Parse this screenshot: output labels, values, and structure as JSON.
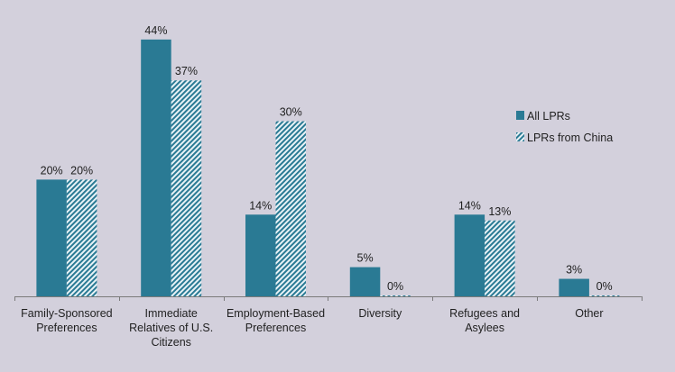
{
  "chart_data": {
    "type": "bar",
    "title": "",
    "xlabel": "",
    "ylabel": "",
    "ylim": [
      0,
      45
    ],
    "grid": false,
    "legend_position": "right",
    "categories": [
      [
        "Family-Sponsored",
        "Preferences"
      ],
      [
        "Immediate",
        "Relatives of U.S.",
        "Citizens"
      ],
      [
        "Employment-Based",
        "Preferences"
      ],
      [
        "Diversity"
      ],
      [
        "Refugees and",
        "Asylees"
      ],
      [
        "Other"
      ]
    ],
    "series": [
      {
        "name": "All LPRs",
        "color": "#2a7a94",
        "pattern": "solid",
        "values": [
          20,
          44,
          14,
          5,
          14,
          3
        ],
        "labels": [
          "20%",
          "44%",
          "14%",
          "5%",
          "14%",
          "3%"
        ]
      },
      {
        "name": "LPRs from China",
        "color": "#2a7a94",
        "pattern": "hatched",
        "values": [
          20,
          37,
          30,
          0,
          13,
          0
        ],
        "labels": [
          "20%",
          "37%",
          "30%",
          "0%",
          "13%",
          "0%"
        ]
      }
    ]
  }
}
